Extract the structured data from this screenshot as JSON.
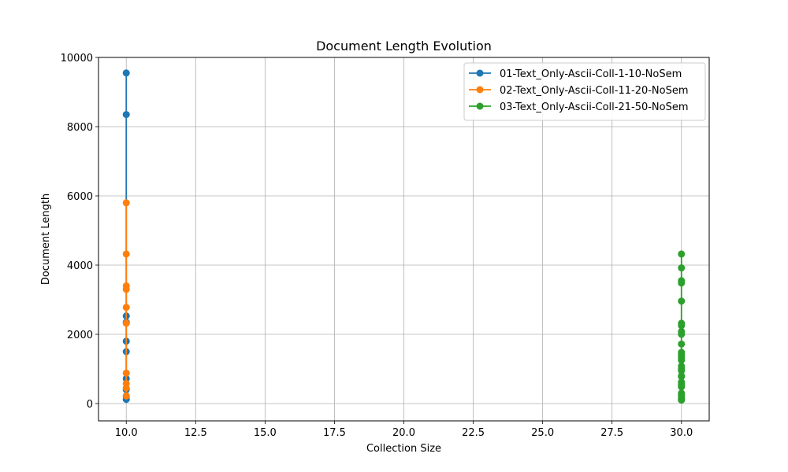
{
  "chart_data": {
    "type": "line",
    "title": "Document Length Evolution",
    "xlabel": "Collection Size",
    "ylabel": "Document Length",
    "xlim": [
      9.0,
      31.0
    ],
    "ylim": [
      -500,
      10000
    ],
    "xticks": [
      10.0,
      12.5,
      15.0,
      17.5,
      20.0,
      22.5,
      25.0,
      27.5,
      30.0
    ],
    "xtick_labels": [
      "10.0",
      "12.5",
      "15.0",
      "17.5",
      "20.0",
      "22.5",
      "25.0",
      "27.5",
      "30.0"
    ],
    "yticks": [
      0,
      2000,
      4000,
      6000,
      8000,
      10000
    ],
    "ytick_labels": [
      "0",
      "2000",
      "4000",
      "6000",
      "8000",
      "10000"
    ],
    "grid": true,
    "legend_position": "top-right",
    "series": [
      {
        "name": "01-Text_Only-Ascii-Coll-1-10-NoSem",
        "color": "#1f77b4",
        "x": [
          10,
          10,
          10,
          10,
          10,
          10,
          10,
          10,
          10,
          10
        ],
        "y": [
          9550,
          8350,
          2530,
          2350,
          1800,
          1500,
          720,
          400,
          200,
          120
        ]
      },
      {
        "name": "02-Text_Only-Ascii-Coll-11-20-NoSem",
        "color": "#ff7f0e",
        "x": [
          10,
          10,
          10,
          10,
          10,
          10,
          10,
          10,
          10,
          10
        ],
        "y": [
          5800,
          4320,
          3400,
          3300,
          2780,
          2320,
          880,
          580,
          450,
          220
        ]
      },
      {
        "name": "03-Text_Only-Ascii-Coll-21-50-NoSem",
        "color": "#2ca02c",
        "x": [
          30,
          30,
          30,
          30,
          30,
          30,
          30,
          30,
          30,
          30,
          30,
          30,
          30,
          30,
          30,
          30,
          30,
          30,
          30,
          30,
          30,
          30,
          30,
          30,
          30,
          30,
          30,
          30,
          30,
          30
        ],
        "y": [
          4320,
          3920,
          3550,
          3480,
          2960,
          2320,
          2250,
          2080,
          2000,
          1720,
          1480,
          1420,
          1350,
          1300,
          1250,
          1080,
          1000,
          950,
          800,
          780,
          620,
          560,
          520,
          480,
          300,
          250,
          200,
          150,
          120,
          100
        ]
      }
    ]
  }
}
